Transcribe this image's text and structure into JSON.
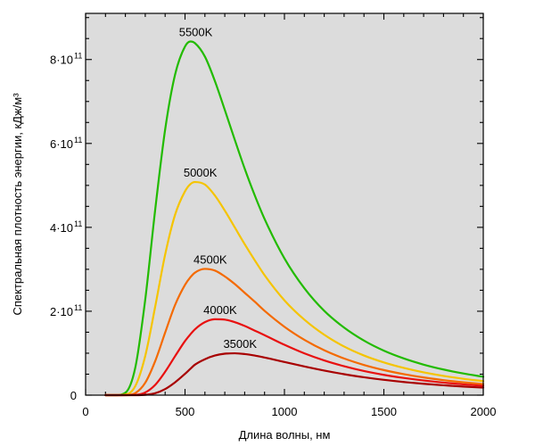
{
  "chart_data": {
    "type": "line",
    "xlabel": "Длина волны, нм",
    "ylabel": "Спектральная плотность энергии, кДж/м³",
    "xlim": [
      0,
      2000
    ],
    "ylim": [
      0,
      910000000000.0
    ],
    "x_ticks": [
      {
        "value": 0,
        "label": "0"
      },
      {
        "value": 500,
        "label": "500"
      },
      {
        "value": 1000,
        "label": "1000"
      },
      {
        "value": 1500,
        "label": "1500"
      },
      {
        "value": 2000,
        "label": "2000"
      }
    ],
    "y_ticks": [
      {
        "value": 0,
        "label": "0",
        "exp": ""
      },
      {
        "value": 200000000000.0,
        "label": "2·10",
        "exp": "11"
      },
      {
        "value": 400000000000.0,
        "label": "4·10",
        "exp": "11"
      },
      {
        "value": 600000000000.0,
        "label": "6·10",
        "exp": "11"
      },
      {
        "value": 800000000000.0,
        "label": "8·10",
        "exp": "11"
      }
    ],
    "grid": false,
    "background": "#dcdcdc",
    "x": [
      100,
      150,
      200,
      250,
      300,
      350,
      400,
      450,
      500,
      527,
      550,
      600,
      650,
      700,
      750,
      800,
      850,
      900,
      1000,
      1100,
      1200,
      1300,
      1400,
      1500,
      1600,
      1700,
      1800,
      1900,
      2000
    ],
    "series": [
      {
        "name": "5500K",
        "color": "#22bb00",
        "values": [
          100000.0,
          10000000.0,
          5700000000.0,
          66000000000.0,
          228000000000.0,
          442000000000.0,
          633000000000.0,
          764000000000.0,
          831000000000.0,
          843000000000.0,
          839000000000.0,
          807000000000.0,
          749000000000.0,
          680000000000.0,
          609000000000.0,
          540000000000.0,
          477000000000.0,
          420000000000.0,
          326000000000.0,
          255000000000.0,
          201000000000.0,
          161000000000.0,
          130000000000.0,
          106000000000.0,
          87500000000.0,
          72800000000.0,
          61100000000.0,
          51600000000.0,
          43900000000.0
        ]
      },
      {
        "name": "5000K",
        "color": "#f5c400",
        "values": [
          0,
          1000000.0,
          1320000000.0,
          21700000000.0,
          93600000000.0,
          211000000000.0,
          335000000000.0,
          430000000000.0,
          486000000000.0,
          503000000000.0,
          508000000000.0,
          502000000000.0,
          476000000000.0,
          440000000000.0,
          400000000000.0,
          360000000000.0,
          322000000000.0,
          286000000000.0,
          226000000000.0,
          180000000000.0,
          144000000000.0,
          116000000000.0,
          94500000000.0,
          78000000000.0,
          64900000000.0,
          54300000000.0,
          45900000000.0,
          39000000000.0,
          33300000000.0
        ]
      },
      {
        "name": "4500K",
        "color": "#f46a00",
        "values": [
          0,
          0,
          203000000.0,
          5020000000.0,
          29600000000.0,
          81200000000.0,
          149000000000.0,
          215000000000.0,
          263000000000.0,
          281000000000.0,
          292000000000.0,
          301000000000.0,
          297000000000.0,
          283000000000.0,
          265000000000.0,
          244000000000.0,
          223000000000.0,
          201000000000.0,
          163000000000.0,
          132000000000.0,
          107000000000.0,
          87400000000.0,
          72000000000.0,
          59800000000.0,
          50100000000.0,
          42200000000.0,
          35800000000.0,
          30600000000.0,
          26300000000.0
        ]
      },
      {
        "name": "4000K",
        "color": "#e81010",
        "values": [
          0,
          0,
          15000000.0,
          670000000.0,
          6500000000.0,
          24500000000.0,
          55700000000.0,
          92900000000.0,
          129000000000.0,
          145000000000.0,
          157000000000.0,
          174000000000.0,
          181000000000.0,
          180000000000.0,
          174000000000.0,
          165000000000.0,
          154000000000.0,
          143000000000.0,
          120000000000.0,
          99600000000.0,
          82700000000.0,
          68900000000.0,
          57500000000.0,
          48400000000.0,
          41000000000.0,
          34900000000.0,
          29900000000.0,
          25700000000.0,
          22200000000.0
        ]
      },
      {
        "name": "3500K",
        "color": "#a80000",
        "values": [
          0,
          0,
          0,
          37000000.0,
          830000000.0,
          4760000000.0,
          14500000000.0,
          30600000000.0,
          50800000000.0,
          62800000000.0,
          72700000000.0,
          85700000000.0,
          94400000000.0,
          98800000000.0,
          99800000000.0,
          98000000000.0,
          94500000000.0,
          89700000000.0,
          79100000000.0,
          68400000000.0,
          58600000000.0,
          50000000000.0,
          42700000000.0,
          36500000000.0,
          31400000000.0,
          27100000000.0,
          23500000000.0,
          20500000000.0,
          17900000000.0
        ]
      }
    ]
  }
}
